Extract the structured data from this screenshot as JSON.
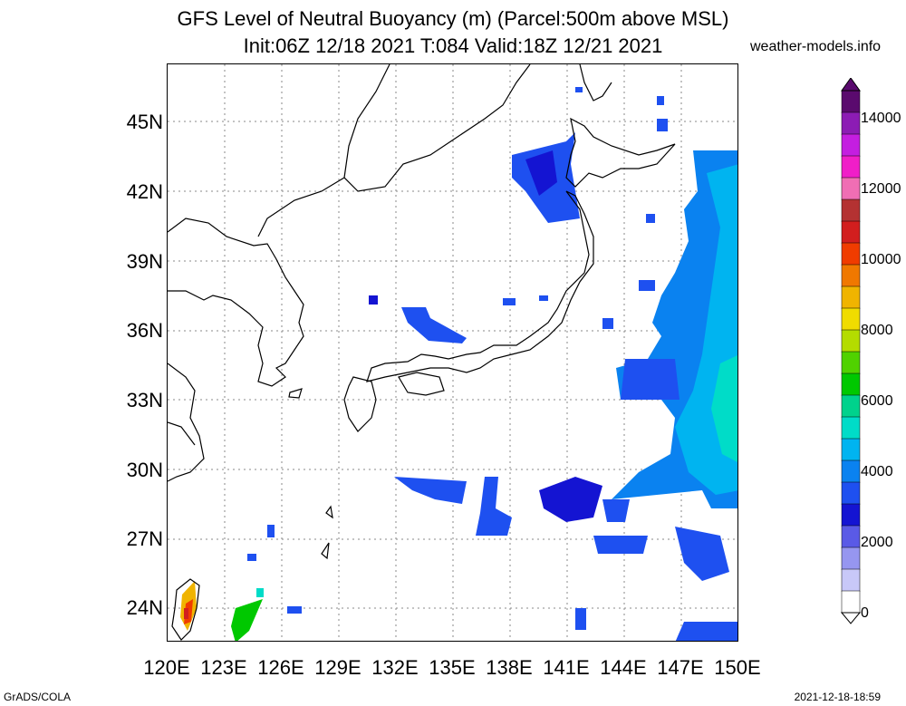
{
  "title_line1": "GFS Level of Neutral Buoyancy (m) (Parcel:500m above MSL)",
  "title_line2": "Init:06Z 12/18 2021 T:084 Valid:18Z 12/21 2021",
  "site": "weather-models.info",
  "lat_labels": [
    "45N",
    "42N",
    "39N",
    "36N",
    "33N",
    "30N",
    "27N",
    "24N"
  ],
  "lon_labels": [
    "120E",
    "123E",
    "126E",
    "129E",
    "132E",
    "135E",
    "138E",
    "141E",
    "144E",
    "147E",
    "150E"
  ],
  "colorbar_labels": [
    "14000",
    "12000",
    "10000",
    "8000",
    "6000",
    "4000",
    "2000",
    "0"
  ],
  "colorbar_colors": [
    "#5a0a6e",
    "#8c1cb4",
    "#c41ee0",
    "#f01ec8",
    "#f06eb4",
    "#b43232",
    "#d21e1e",
    "#f03c00",
    "#f07800",
    "#f0b400",
    "#f0dc00",
    "#b4dc00",
    "#50d200",
    "#00c800",
    "#00d28c",
    "#00dcc8",
    "#00b4f0",
    "#0a82f0",
    "#1e50f0",
    "#1414d2",
    "#5a5ae6",
    "#9696f0",
    "#c8c8f8",
    "#fff"
  ],
  "footer_left": "GrADS/COLA",
  "footer_right": "2021-12-18-18:59"
}
